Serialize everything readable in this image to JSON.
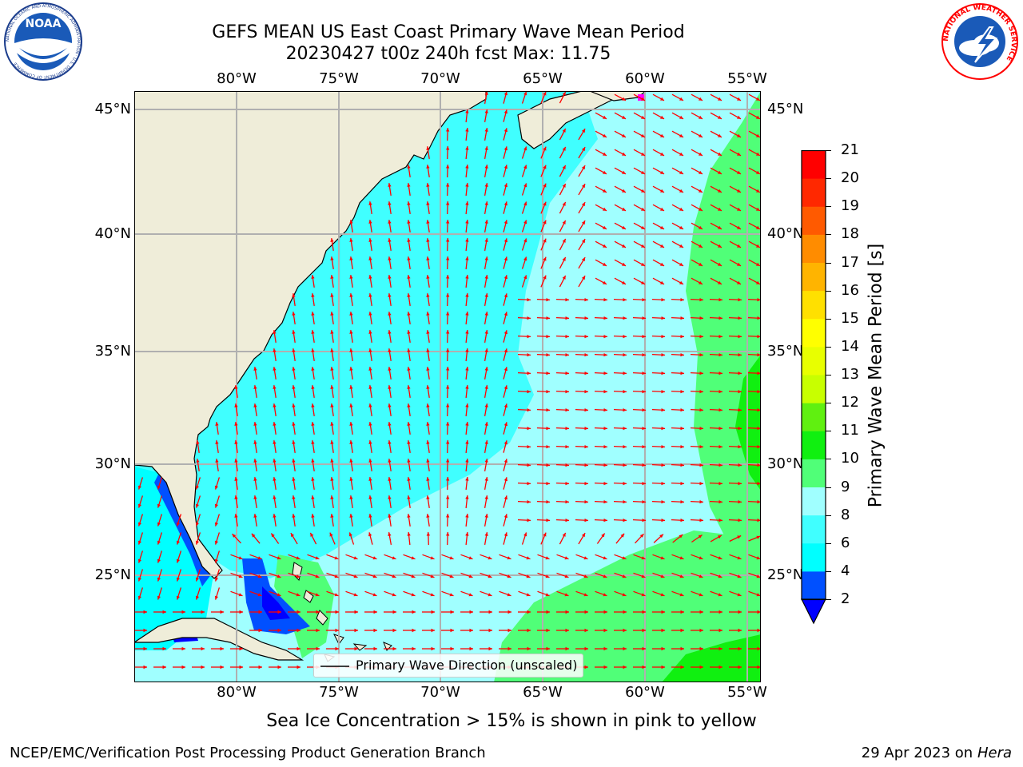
{
  "header": {
    "title_line1": "GEFS MEAN US East Coast Primary Wave Mean Period",
    "title_line2": "20230427 t00z 240h fcst   Max: 11.75"
  },
  "logos": {
    "noaa_text": "NOAA",
    "noaa_ring": "NATIONAL OCEANIC AND ATMOSPHERIC ADMINISTRATION · U.S. DEPARTMENT OF COMMERCE",
    "nws_ring": "NATIONAL WEATHER SERVICE"
  },
  "map": {
    "lon_labels": [
      "80°W",
      "75°W",
      "70°W",
      "65°W",
      "60°W",
      "55°W"
    ],
    "lat_labels": [
      "45°N",
      "40°N",
      "35°N",
      "30°N",
      "25°N"
    ],
    "lon_range": [
      -85,
      -54.5
    ],
    "lat_range": [
      20.5,
      46
    ],
    "land_color": "#efedd9",
    "grid_color": "#b0b0b0",
    "arrow_color": "#ff0000",
    "legend_label": "Primary Wave Direction (unscaled)"
  },
  "colorbar": {
    "title": "Primary Wave Mean Period [s]",
    "ticks": [
      "2",
      "4",
      "6",
      "8",
      "9",
      "10",
      "11",
      "12",
      "13",
      "14",
      "15",
      "16",
      "17",
      "18",
      "19",
      "20",
      "21"
    ],
    "levels": [
      {
        "color": "#0050ff"
      },
      {
        "color": "#00ffff"
      },
      {
        "color": "#40ffff"
      },
      {
        "color": "#a0ffff"
      },
      {
        "color": "#50ff78"
      },
      {
        "color": "#10f010"
      },
      {
        "color": "#60f010"
      },
      {
        "color": "#c8ff00"
      },
      {
        "color": "#e8ff00"
      },
      {
        "color": "#ffff00"
      },
      {
        "color": "#ffe000"
      },
      {
        "color": "#ffb400"
      },
      {
        "color": "#ff8c00"
      },
      {
        "color": "#ff5a00"
      },
      {
        "color": "#ff2800"
      },
      {
        "color": "#ff0000"
      }
    ],
    "under_color": "#0000ff"
  },
  "footer": {
    "note": "Sea Ice Concentration > 15% is shown in pink to yellow",
    "credit": "NCEP/EMC/Verification Post Processing Product Generation Branch",
    "date_prefix": "29 Apr 2023 on ",
    "machine": "Hera"
  }
}
